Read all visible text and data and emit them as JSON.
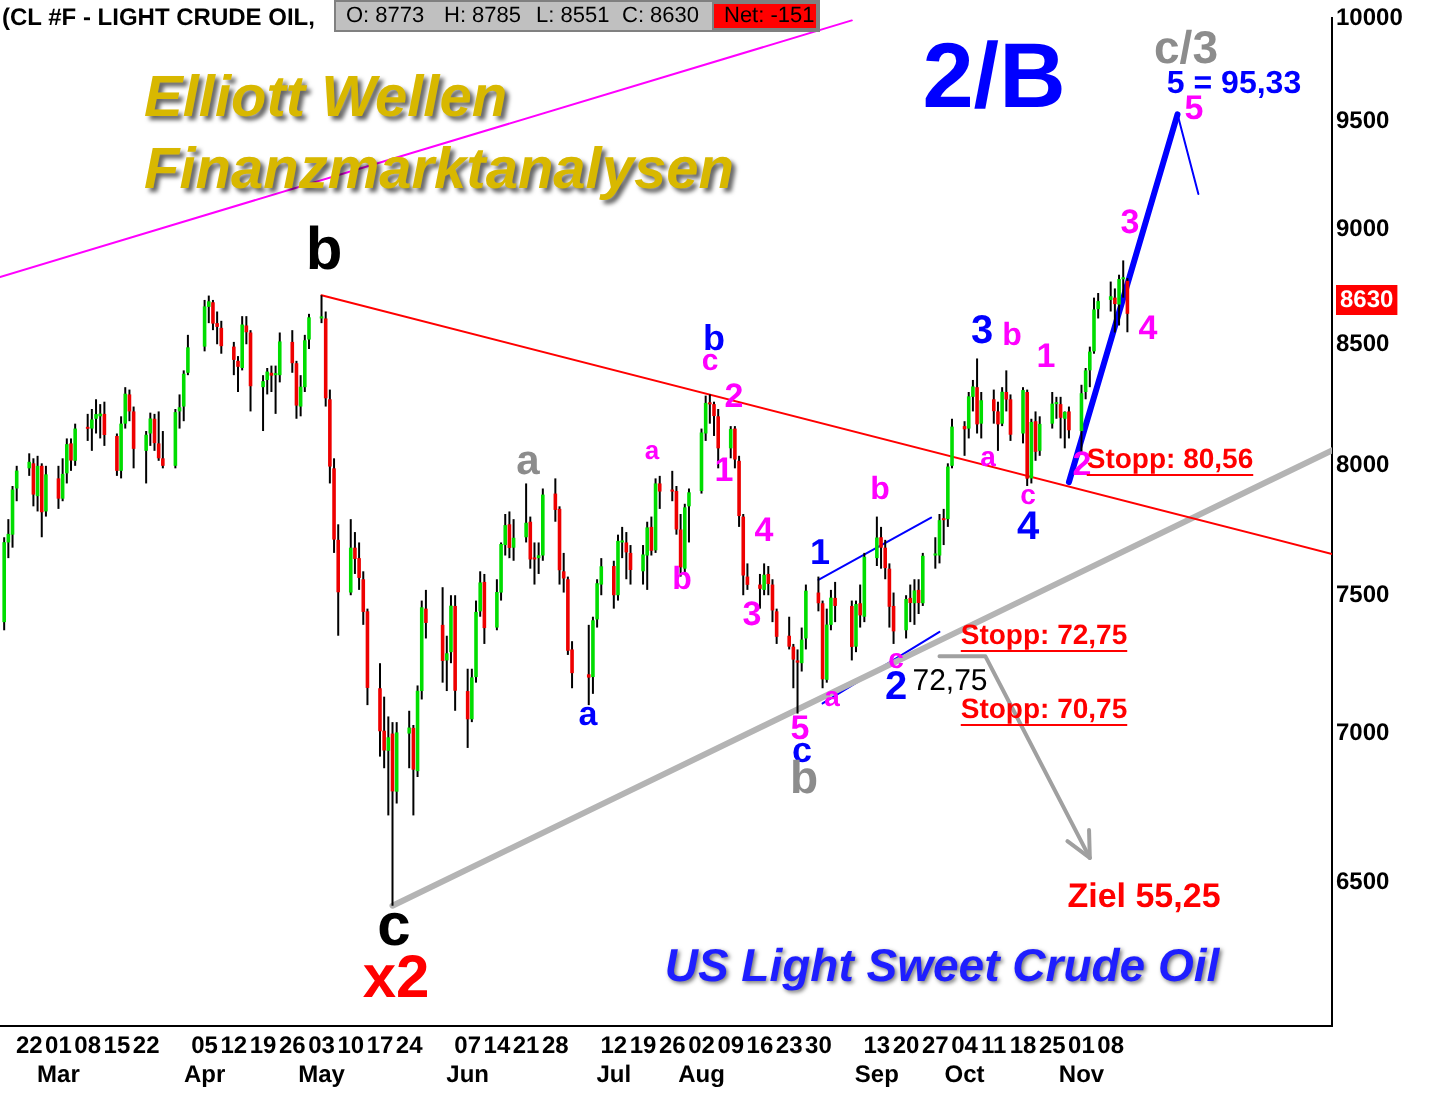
{
  "chart_data": {
    "type": "candlestick",
    "title": "(CL #F - LIGHT CRUDE OIL,",
    "subtitle": "US Light Sweet Crude Oil",
    "log": "y",
    "xlim": [
      "--02-15",
      "--12-31"
    ],
    "ylim": [
      6050,
      10000
    ],
    "yticks": [
      6500,
      7000,
      7500,
      8000,
      8500,
      9000,
      9500,
      10000
    ],
    "xticks": [
      {
        "value": "--02-22",
        "label": "22"
      },
      {
        "value": "--03-01",
        "label": "01\nMar"
      },
      {
        "value": "--03-08",
        "label": "08"
      },
      {
        "value": "--03-15",
        "label": "15"
      },
      {
        "value": "--03-22",
        "label": "22"
      },
      {
        "value": "--04-05",
        "label": "05\nApr"
      },
      {
        "value": "--04-12",
        "label": "12"
      },
      {
        "value": "--04-19",
        "label": "19"
      },
      {
        "value": "--04-26",
        "label": "26"
      },
      {
        "value": "--05-03",
        "label": "03\nMay"
      },
      {
        "value": "--05-10",
        "label": "10"
      },
      {
        "value": "--05-17",
        "label": "17"
      },
      {
        "value": "--05-24",
        "label": "24"
      },
      {
        "value": "--06-07",
        "label": "07\nJun"
      },
      {
        "value": "--06-14",
        "label": "14"
      },
      {
        "value": "--06-21",
        "label": "21"
      },
      {
        "value": "--06-28",
        "label": "28"
      },
      {
        "value": "--07-12",
        "label": "12\nJul"
      },
      {
        "value": "--07-19",
        "label": "19"
      },
      {
        "value": "--07-26",
        "label": "26"
      },
      {
        "value": "--08-02",
        "label": "02\nAug"
      },
      {
        "value": "--08-09",
        "label": "09"
      },
      {
        "value": "--08-16",
        "label": "16"
      },
      {
        "value": "--08-23",
        "label": "23"
      },
      {
        "value": "--08-30",
        "label": "30"
      },
      {
        "value": "--09-13",
        "label": "13\nSep"
      },
      {
        "value": "--09-20",
        "label": "20"
      },
      {
        "value": "--09-27",
        "label": "27"
      },
      {
        "value": "--10-04",
        "label": "04\nOct"
      },
      {
        "value": "--10-11",
        "label": "11"
      },
      {
        "value": "--10-18",
        "label": "18"
      },
      {
        "value": "--10-25",
        "label": "25"
      },
      {
        "value": "--11-01",
        "label": "01\nNov"
      },
      {
        "value": "--11-08",
        "label": "08"
      }
    ],
    "x": [
      "--02-16",
      "--02-17",
      "--02-18",
      "--02-19",
      "--02-22",
      "--02-23",
      "--02-24",
      "--02-25",
      "--02-26",
      "--03-01",
      "--03-02",
      "--03-03",
      "--03-04",
      "--03-05",
      "--03-08",
      "--03-09",
      "--03-10",
      "--03-11",
      "--03-12",
      "--03-15",
      "--03-16",
      "--03-17",
      "--03-18",
      "--03-19",
      "--03-22",
      "--03-23",
      "--03-24",
      "--03-25",
      "--03-26",
      "--03-29",
      "--03-30",
      "--03-31",
      "--04-01",
      "--04-05",
      "--04-06",
      "--04-07",
      "--04-08",
      "--04-09",
      "--04-12",
      "--04-13",
      "--04-14",
      "--04-15",
      "--04-16",
      "--04-19",
      "--04-20",
      "--04-21",
      "--04-22",
      "--04-23",
      "--04-26",
      "--04-27",
      "--04-28",
      "--04-29",
      "--04-30",
      "--05-03",
      "--05-04",
      "--05-05",
      "--05-06",
      "--05-07",
      "--05-10",
      "--05-11",
      "--05-12",
      "--05-13",
      "--05-14",
      "--05-17",
      "--05-18",
      "--05-19",
      "--05-20",
      "--05-21",
      "--05-24",
      "--05-25",
      "--05-26",
      "--05-27",
      "--05-28",
      "--06-01",
      "--06-02",
      "--06-03",
      "--06-04",
      "--06-07",
      "--06-08",
      "--06-09",
      "--06-10",
      "--06-11",
      "--06-14",
      "--06-15",
      "--06-16",
      "--06-17",
      "--06-18",
      "--06-21",
      "--06-22",
      "--06-23",
      "--06-24",
      "--06-25",
      "--06-28",
      "--06-29",
      "--06-30",
      "--07-01",
      "--07-02",
      "--07-06",
      "--07-07",
      "--07-08",
      "--07-09",
      "--07-12",
      "--07-13",
      "--07-14",
      "--07-15",
      "--07-16",
      "--07-19",
      "--07-20",
      "--07-21",
      "--07-22",
      "--07-23",
      "--07-26",
      "--07-27",
      "--07-28",
      "--07-29",
      "--07-30",
      "--08-02",
      "--08-03",
      "--08-04",
      "--08-05",
      "--08-06",
      "--08-09",
      "--08-10",
      "--08-11",
      "--08-12",
      "--08-13",
      "--08-16",
      "--08-17",
      "--08-18",
      "--08-19",
      "--08-20",
      "--08-23",
      "--08-24",
      "--08-25",
      "--08-26",
      "--08-27",
      "--08-30",
      "--08-31",
      "--09-01",
      "--09-02",
      "--09-03",
      "--09-07",
      "--09-08",
      "--09-09",
      "--09-10",
      "--09-13",
      "--09-14",
      "--09-15",
      "--09-16",
      "--09-17",
      "--09-20",
      "--09-21",
      "--09-22",
      "--09-23",
      "--09-24",
      "--09-27",
      "--09-28",
      "--09-29",
      "--09-30",
      "--10-01",
      "--10-04",
      "--10-05",
      "--10-06",
      "--10-07",
      "--10-08",
      "--10-11",
      "--10-12",
      "--10-13",
      "--10-14",
      "--10-15",
      "--10-18",
      "--10-19",
      "--10-20",
      "--10-21",
      "--10-22",
      "--10-25",
      "--10-26",
      "--10-27",
      "--10-28",
      "--10-29",
      "--11-01",
      "--11-02",
      "--11-03",
      "--11-04",
      "--11-05",
      "--11-08",
      "--11-09",
      "--11-10",
      "--11-11",
      "--11-12"
    ],
    "ohlc": [
      [
        7400,
        7720,
        7370,
        7701
      ],
      [
        7700,
        7790,
        7640,
        7733
      ],
      [
        7730,
        7920,
        7680,
        7906
      ],
      [
        7910,
        8000,
        7860,
        7981
      ],
      [
        7990,
        8050,
        7960,
        8016
      ],
      [
        8010,
        8030,
        7840,
        7886
      ],
      [
        7880,
        8040,
        7820,
        8000
      ],
      [
        8000,
        8010,
        7720,
        7817
      ],
      [
        7820,
        8000,
        7800,
        7966
      ],
      [
        7950,
        8000,
        7830,
        7870
      ],
      [
        7870,
        8030,
        7860,
        7968
      ],
      [
        7970,
        8110,
        7930,
        8087
      ],
      [
        8090,
        8110,
        7980,
        8021
      ],
      [
        8020,
        8170,
        8000,
        8150
      ],
      [
        8150,
        8210,
        8100,
        8149
      ],
      [
        8150,
        8230,
        8060,
        8187
      ],
      [
        8190,
        8270,
        8130,
        8209
      ],
      [
        8200,
        8250,
        8110,
        8211
      ],
      [
        8210,
        8260,
        8080,
        8124
      ],
      [
        8120,
        8130,
        7960,
        7980
      ],
      [
        7980,
        8200,
        7950,
        8170
      ],
      [
        8170,
        8320,
        8150,
        8293
      ],
      [
        8290,
        8310,
        8180,
        8220
      ],
      [
        8220,
        8240,
        7990,
        8068
      ],
      [
        8060,
        8140,
        7930,
        8125
      ],
      [
        8130,
        8215,
        8080,
        8191
      ],
      [
        8190,
        8210,
        8060,
        8091
      ],
      [
        8090,
        8220,
        8020,
        8030
      ],
      [
        8030,
        8140,
        7990,
        8000
      ],
      [
        8000,
        8230,
        7990,
        8217
      ],
      [
        8220,
        8290,
        8150,
        8237
      ],
      [
        8240,
        8390,
        8180,
        8376
      ],
      [
        8380,
        8540,
        8370,
        8487
      ],
      [
        8490,
        8690,
        8470,
        8662
      ],
      [
        8660,
        8709,
        8590,
        8684
      ],
      [
        8680,
        8690,
        8560,
        8588
      ],
      [
        8590,
        8640,
        8500,
        8574
      ],
      [
        8570,
        8600,
        8460,
        8492
      ],
      [
        8490,
        8510,
        8370,
        8434
      ],
      [
        8430,
        8450,
        8300,
        8405
      ],
      [
        8400,
        8620,
        8390,
        8584
      ],
      [
        8580,
        8620,
        8500,
        8551
      ],
      [
        8550,
        8560,
        8220,
        8324
      ],
      [
        8320,
        8370,
        8140,
        8345
      ],
      [
        8350,
        8400,
        8290,
        8385
      ],
      [
        8380,
        8410,
        8300,
        8368
      ],
      [
        8370,
        8410,
        8210,
        8370
      ],
      [
        8370,
        8550,
        8340,
        8512
      ],
      [
        8510,
        8560,
        8380,
        8420
      ],
      [
        8420,
        8430,
        8190,
        8244
      ],
      [
        8240,
        8370,
        8200,
        8322
      ],
      [
        8320,
        8540,
        8300,
        8517
      ],
      [
        8520,
        8630,
        8480,
        8615
      ],
      [
        8610,
        8710,
        8590,
        8619
      ],
      [
        8610,
        8640,
        8240,
        8274
      ],
      [
        8270,
        8310,
        7930,
        7997
      ],
      [
        7990,
        8030,
        7660,
        7711
      ],
      [
        7710,
        7770,
        7350,
        7511
      ],
      [
        7510,
        7790,
        7500,
        7680
      ],
      [
        7680,
        7740,
        7580,
        7637
      ],
      [
        7640,
        7700,
        7520,
        7565
      ],
      [
        7560,
        7590,
        7390,
        7438
      ],
      [
        7440,
        7450,
        7100,
        7161
      ],
      [
        7160,
        7250,
        6920,
        7008
      ],
      [
        7010,
        7130,
        6880,
        6941
      ],
      [
        6940,
        7060,
        6720,
        6987
      ],
      [
        7000,
        7040,
        6424,
        6801
      ],
      [
        6800,
        7040,
        6760,
        7004
      ],
      [
        7000,
        7080,
        6880,
        7021
      ],
      [
        7020,
        7030,
        6720,
        6875
      ],
      [
        6870,
        7170,
        6850,
        7151
      ],
      [
        7150,
        7480,
        7120,
        7455
      ],
      [
        7450,
        7520,
        7340,
        7397
      ],
      [
        7390,
        7530,
        7180,
        7258
      ],
      [
        7260,
        7350,
        7150,
        7286
      ],
      [
        7290,
        7500,
        7250,
        7461
      ],
      [
        7460,
        7500,
        7080,
        7151
      ],
      [
        7150,
        7230,
        6950,
        7050
      ],
      [
        7050,
        7230,
        7040,
        7199
      ],
      [
        7200,
        7480,
        7180,
        7438
      ],
      [
        7440,
        7590,
        7420,
        7548
      ],
      [
        7550,
        7580,
        7320,
        7378
      ],
      [
        7380,
        7560,
        7370,
        7512
      ],
      [
        7510,
        7700,
        7480,
        7694
      ],
      [
        7690,
        7810,
        7650,
        7767
      ],
      [
        7770,
        7820,
        7640,
        7679
      ],
      [
        7680,
        7790,
        7630,
        7718
      ],
      [
        7720,
        7930,
        7700,
        7776
      ],
      [
        7780,
        7800,
        7600,
        7635
      ],
      [
        7640,
        7700,
        7540,
        7635
      ],
      [
        7640,
        7700,
        7580,
        7651
      ],
      [
        7650,
        7910,
        7630,
        7886
      ],
      [
        7890,
        7950,
        7780,
        7826
      ],
      [
        7830,
        7840,
        7540,
        7594
      ],
      [
        7590,
        7660,
        7510,
        7563
      ],
      [
        7560,
        7570,
        7280,
        7295
      ],
      [
        7300,
        7330,
        7160,
        7214
      ],
      [
        7210,
        7390,
        7100,
        7198
      ],
      [
        7200,
        7420,
        7140,
        7407
      ],
      [
        7410,
        7560,
        7380,
        7545
      ],
      [
        7540,
        7640,
        7500,
        7609
      ],
      [
        7610,
        7630,
        7450,
        7500
      ],
      [
        7500,
        7730,
        7480,
        7706
      ],
      [
        7700,
        7760,
        7640,
        7704
      ],
      [
        7700,
        7740,
        7560,
        7662
      ],
      [
        7660,
        7690,
        7540,
        7595
      ],
      [
        7590,
        7690,
        7540,
        7654
      ],
      [
        7650,
        7780,
        7520,
        7758
      ],
      [
        7760,
        7800,
        7650,
        7668
      ],
      [
        7670,
        7950,
        7660,
        7930
      ],
      [
        7930,
        7960,
        7830,
        7898
      ],
      [
        7900,
        7980,
        7860,
        7898
      ],
      [
        7900,
        7920,
        7730,
        7750
      ],
      [
        7750,
        7810,
        7570,
        7605
      ],
      [
        7600,
        7850,
        7580,
        7836
      ],
      [
        7840,
        7910,
        7700,
        7895
      ],
      [
        7900,
        8150,
        7890,
        8134
      ],
      [
        8130,
        8285,
        8100,
        8255
      ],
      [
        8250,
        8290,
        8170,
        8249
      ],
      [
        8250,
        8260,
        8120,
        8201
      ],
      [
        8200,
        8230,
        7990,
        8070
      ],
      [
        8070,
        8160,
        8030,
        8148
      ],
      [
        8150,
        8160,
        7990,
        8025
      ],
      [
        8020,
        8040,
        7760,
        7802
      ],
      [
        7800,
        7810,
        7500,
        7574
      ],
      [
        7570,
        7620,
        7520,
        7539
      ],
      [
        7540,
        7580,
        7450,
        7524
      ],
      [
        7520,
        7620,
        7500,
        7577
      ],
      [
        7580,
        7610,
        7500,
        7542
      ],
      [
        7540,
        7560,
        7400,
        7443
      ],
      [
        7440,
        7450,
        7320,
        7346
      ],
      [
        7350,
        7420,
        7300,
        7310
      ],
      [
        7310,
        7320,
        7160,
        7263
      ],
      [
        7260,
        7300,
        7070,
        7252
      ],
      [
        7250,
        7380,
        7220,
        7336
      ],
      [
        7340,
        7540,
        7300,
        7517
      ],
      [
        7510,
        7570,
        7440,
        7470
      ],
      [
        7470,
        7480,
        7160,
        7192
      ],
      [
        7190,
        7450,
        7180,
        7391
      ],
      [
        7390,
        7520,
        7370,
        7491
      ],
      [
        7490,
        7550,
        7400,
        7460
      ],
      [
        7460,
        7480,
        7260,
        7309
      ],
      [
        7310,
        7480,
        7290,
        7467
      ],
      [
        7470,
        7540,
        7380,
        7425
      ],
      [
        7420,
        7660,
        7400,
        7645
      ],
      [
        7640,
        7800,
        7610,
        7719
      ],
      [
        7720,
        7760,
        7600,
        7680
      ],
      [
        7680,
        7710,
        7560,
        7602
      ],
      [
        7600,
        7620,
        7380,
        7457
      ],
      [
        7460,
        7510,
        7320,
        7366
      ],
      [
        7370,
        7500,
        7340,
        7486
      ],
      [
        7490,
        7540,
        7400,
        7471
      ],
      [
        7470,
        7560,
        7390,
        7518
      ],
      [
        7520,
        7560,
        7430,
        7471
      ],
      [
        7470,
        7660,
        7460,
        7649
      ],
      [
        7650,
        7720,
        7600,
        7652
      ],
      [
        7650,
        7810,
        7620,
        7786
      ],
      [
        7790,
        7830,
        7690,
        7786
      ],
      [
        7790,
        8010,
        7760,
        7997
      ],
      [
        8000,
        8190,
        7990,
        8158
      ],
      [
        8160,
        8180,
        8040,
        8147
      ],
      [
        8150,
        8300,
        8110,
        8282
      ],
      [
        8280,
        8350,
        8220,
        8323
      ],
      [
        8320,
        8440,
        8130,
        8167
      ],
      [
        8170,
        8300,
        8110,
        8266
      ],
      [
        8270,
        8310,
        8170,
        8221
      ],
      [
        8220,
        8260,
        8060,
        8167
      ],
      [
        8170,
        8320,
        8160,
        8301
      ],
      [
        8300,
        8390,
        8220,
        8269
      ],
      [
        8270,
        8290,
        8100,
        8125
      ],
      [
        8130,
        8320,
        8090,
        8308
      ],
      [
        8300,
        8310,
        7920,
        7949
      ],
      [
        7950,
        8190,
        7930,
        8177
      ],
      [
        8180,
        8220,
        8020,
        8056
      ],
      [
        8060,
        8200,
        8040,
        8169
      ],
      [
        8170,
        8300,
        8150,
        8252
      ],
      [
        8250,
        8280,
        8190,
        8255
      ],
      [
        8250,
        8280,
        8110,
        8194
      ],
      [
        8190,
        8220,
        8070,
        8218
      ],
      [
        8220,
        8240,
        8110,
        8143
      ],
      [
        8140,
        8330,
        8050,
        8295
      ],
      [
        8300,
        8400,
        8270,
        8390
      ],
      [
        8390,
        8490,
        8320,
        8469
      ],
      [
        8470,
        8700,
        8460,
        8649
      ],
      [
        8650,
        8720,
        8610,
        8685
      ],
      [
        8690,
        8770,
        8640,
        8706
      ],
      [
        8700,
        8740,
        8550,
        8672
      ],
      [
        8670,
        8800,
        8580,
        8781
      ],
      [
        8780,
        8863,
        8700,
        8781
      ],
      [
        8773,
        8785,
        8551,
        8630
      ]
    ],
    "series": [
      {
        "type": "line",
        "color": "#ff00ff",
        "x": [
          "--02-15",
          "--09-07"
        ],
        "values": [
          8790,
          9990
        ]
      },
      {
        "type": "line",
        "color": "#ff0000",
        "x": [
          "--05-03",
          "--12-31"
        ],
        "values": [
          8710,
          7656
        ]
      },
      {
        "type": "line",
        "color": "#b4b4b4",
        "x": [
          "--05-20",
          "--12-31"
        ],
        "values": [
          6424,
          8062
        ]
      },
      {
        "type": "line",
        "color": "#0000ff",
        "x": [
          "--08-30",
          "--09-26"
        ],
        "values": [
          7558,
          7796
        ]
      },
      {
        "type": "line",
        "color": "#0000ff",
        "x": [
          "--08-31",
          "--09-28"
        ],
        "values": [
          7106,
          7364
        ]
      },
      {
        "type": "line",
        "color": "#0000ff",
        "x": [
          "--10-29",
          "--11-24"
        ],
        "values": [
          7935,
          9533
        ]
      },
      {
        "type": "line",
        "color": "#0000ff",
        "x": [
          "--11-24",
          "--11-29"
        ],
        "values": [
          9533,
          9161
        ]
      },
      {
        "type": "line",
        "color": "#a0a0a0",
        "x": [
          "--09-28",
          "--10-09",
          "--11-03"
        ],
        "values": [
          7275,
          7275,
          6579
        ]
      }
    ],
    "annotations": [
      "O: 8773",
      "H: 8785",
      "L: 8551",
      "C: 8630",
      "Net: -151",
      "Elliott Wellen",
      "Finanzmarktanalysen",
      "Ziel 55,25",
      "b",
      "c",
      "x2",
      "a",
      "a",
      "a",
      "b",
      "b",
      "c",
      "1",
      "2",
      "3",
      "4",
      "5",
      "c",
      "b",
      "1",
      "a",
      "b",
      "c",
      "2",
      "72,75",
      "Stopp: 72,75",
      "Stopp: 70,75",
      "3",
      "a",
      "b",
      "c",
      "4",
      "1",
      "2",
      "Stopp: 80,56",
      "3",
      "4",
      "5",
      "5 = 95,33",
      "c/3",
      "2/B",
      "8630"
    ]
  }
}
